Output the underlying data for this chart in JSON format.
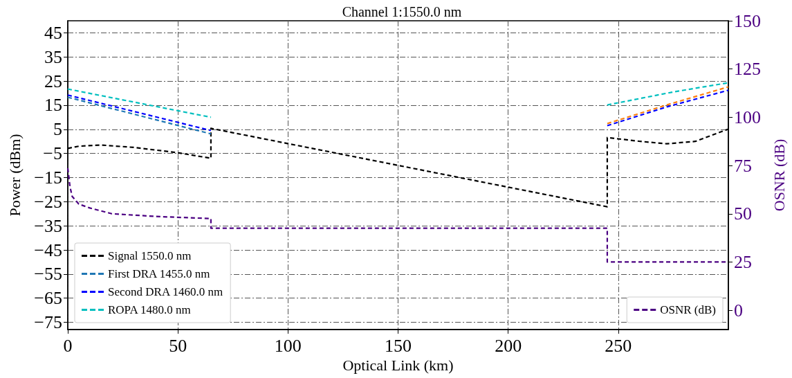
{
  "chart_data": {
    "type": "line",
    "title": "Channel 1:1550.0 nm",
    "xlabel": "Optical Link (km)",
    "ylabel": "Power (dBm)",
    "y2label": "OSNR (dB)",
    "xlim": [
      0,
      300
    ],
    "xticks": [
      0,
      50,
      100,
      150,
      200,
      250
    ],
    "ylim": [
      -78,
      50
    ],
    "yticks": [
      -75,
      -65,
      -55,
      -45,
      -35,
      -25,
      -15,
      -5,
      5,
      15,
      25,
      35,
      45
    ],
    "y2lim": [
      -10,
      150
    ],
    "y2ticks": [
      0,
      25,
      50,
      75,
      100,
      125,
      150
    ],
    "grid": true,
    "legend": "bottom left",
    "marker": "none",
    "line_style": "dashed",
    "series": [
      {
        "name": "Signal 1550.0 nm",
        "color": "#000000",
        "x": [
          0,
          5,
          15,
          30,
          50,
          65,
          65,
          245,
          245,
          260,
          272,
          285,
          300
        ],
        "values": [
          -2.9,
          -2,
          -1.5,
          -2.5,
          -4.7,
          -7,
          5.4,
          -27.1,
          1.6,
          0,
          -1,
          0,
          5.1
        ]
      },
      {
        "name": "First DRA 1455.0 nm",
        "color": "#1f77b4",
        "x": [
          0,
          65
        ],
        "values": [
          18.3,
          3.1
        ]
      },
      {
        "name": "Second DRA 1460.0 nm",
        "color": "#0000ff",
        "x": [
          0,
          65,
          155,
          245,
          272,
          300
        ],
        "values": [
          19.2,
          4.5,
          null,
          6.5,
          14.3,
          21.2
        ]
      },
      {
        "name": "ROPA 1480.0 nm",
        "color": "#00bfbf",
        "x": [
          0,
          65,
          155,
          245,
          275,
          300
        ],
        "values": [
          21.7,
          10,
          null,
          15.1,
          20.5,
          24.3
        ]
      },
      {
        "color": "#ff7f0e",
        "x": [
          245,
          272,
          300
        ],
        "values": [
          7.4,
          15.1,
          22.6
        ]
      },
      {
        "name": "OSNR (dB)",
        "color": "#4b0082",
        "axis": "y2",
        "x": [
          0,
          1,
          2,
          5,
          10,
          20,
          40,
          65,
          65,
          245,
          245,
          300
        ],
        "values": [
          73.6,
          64,
          59,
          55,
          53,
          50,
          48.6,
          47.5,
          42.5,
          42.5,
          25,
          25
        ]
      }
    ]
  }
}
